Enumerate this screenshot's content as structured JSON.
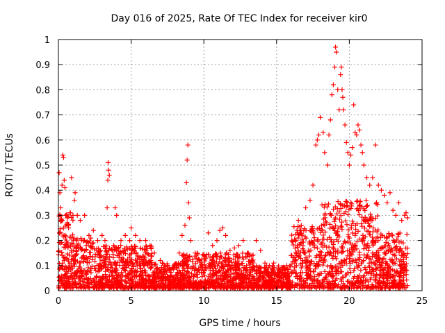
{
  "chart_data": {
    "type": "scatter",
    "title": "Day 016 of 2025, Rate Of TEC Index for receiver kir0",
    "xlabel": "GPS time / hours",
    "ylabel": "ROTI / TECUs",
    "xlim": [
      0,
      25
    ],
    "ylim": [
      0,
      1
    ],
    "xticks": [
      "0",
      "5",
      "10",
      "15",
      "20",
      "25"
    ],
    "yticks": [
      "0",
      "0.1",
      "0.2",
      "0.3",
      "0.4",
      "0.5",
      "0.6",
      "0.7",
      "0.8",
      "0.9",
      "1"
    ],
    "grid": true,
    "marker": "plus",
    "color": "#ff0000",
    "series": [
      {
        "points": [
          [
            0.05,
            0.47
          ],
          [
            0.1,
            0.39
          ],
          [
            0.15,
            0.33
          ],
          [
            0.2,
            0.28
          ],
          [
            0.25,
            0.42
          ],
          [
            0.3,
            0.54
          ],
          [
            0.35,
            0.53
          ],
          [
            0.4,
            0.44
          ],
          [
            0.45,
            0.41
          ],
          [
            0.5,
            0.3
          ],
          [
            0.6,
            0.27
          ],
          [
            0.7,
            0.25
          ],
          [
            0.8,
            0.31
          ],
          [
            0.9,
            0.45
          ],
          [
            1.0,
            0.3
          ],
          [
            1.1,
            0.36
          ],
          [
            1.15,
            0.39
          ],
          [
            1.3,
            0.3
          ],
          [
            1.5,
            0.28
          ],
          [
            1.8,
            0.3
          ],
          [
            2.1,
            0.22
          ],
          [
            2.4,
            0.24
          ],
          [
            2.7,
            0.2
          ],
          [
            3.0,
            0.22
          ],
          [
            3.2,
            0.2
          ],
          [
            3.35,
            0.33
          ],
          [
            3.4,
            0.44
          ],
          [
            3.42,
            0.51
          ],
          [
            3.45,
            0.48
          ],
          [
            3.5,
            0.46
          ],
          [
            3.8,
            0.18
          ],
          [
            3.9,
            0.33
          ],
          [
            4.0,
            0.3
          ],
          [
            4.3,
            0.2
          ],
          [
            4.6,
            0.22
          ],
          [
            4.9,
            0.2
          ],
          [
            5.0,
            0.25
          ],
          [
            5.3,
            0.22
          ],
          [
            5.6,
            0.2
          ],
          [
            6.0,
            0.2
          ],
          [
            6.3,
            0.18
          ],
          [
            6.6,
            0.15
          ],
          [
            7.0,
            0.12
          ],
          [
            7.3,
            0.1
          ],
          [
            7.6,
            0.09
          ],
          [
            8.0,
            0.1
          ],
          [
            8.3,
            0.15
          ],
          [
            8.5,
            0.22
          ],
          [
            8.7,
            0.26
          ],
          [
            8.8,
            0.43
          ],
          [
            8.85,
            0.52
          ],
          [
            8.9,
            0.58
          ],
          [
            8.95,
            0.35
          ],
          [
            9.0,
            0.29
          ],
          [
            9.1,
            0.2
          ],
          [
            9.4,
            0.15
          ],
          [
            9.7,
            0.12
          ],
          [
            10.0,
            0.14
          ],
          [
            10.3,
            0.23
          ],
          [
            10.6,
            0.18
          ],
          [
            10.9,
            0.2
          ],
          [
            11.1,
            0.24
          ],
          [
            11.3,
            0.25
          ],
          [
            11.5,
            0.22
          ],
          [
            11.8,
            0.16
          ],
          [
            12.1,
            0.17
          ],
          [
            12.4,
            0.18
          ],
          [
            12.7,
            0.2
          ],
          [
            13.0,
            0.15
          ],
          [
            13.3,
            0.14
          ],
          [
            13.6,
            0.2
          ],
          [
            13.9,
            0.16
          ],
          [
            14.2,
            0.11
          ],
          [
            14.5,
            0.1
          ],
          [
            14.8,
            0.11
          ],
          [
            15.1,
            0.09
          ],
          [
            15.4,
            0.08
          ],
          [
            15.7,
            0.1
          ],
          [
            16.0,
            0.14
          ],
          [
            16.3,
            0.2
          ],
          [
            16.5,
            0.28
          ],
          [
            16.7,
            0.26
          ],
          [
            17.0,
            0.33
          ],
          [
            17.3,
            0.36
          ],
          [
            17.5,
            0.42
          ],
          [
            17.7,
            0.58
          ],
          [
            17.8,
            0.6
          ],
          [
            17.9,
            0.62
          ],
          [
            18.0,
            0.69
          ],
          [
            18.2,
            0.63
          ],
          [
            18.3,
            0.55
          ],
          [
            18.5,
            0.5
          ],
          [
            18.6,
            0.62
          ],
          [
            18.7,
            0.68
          ],
          [
            18.8,
            0.78
          ],
          [
            18.9,
            0.82
          ],
          [
            19.0,
            0.89
          ],
          [
            19.05,
            0.97
          ],
          [
            19.1,
            0.95
          ],
          [
            19.2,
            0.8
          ],
          [
            19.3,
            0.72
          ],
          [
            19.4,
            0.86
          ],
          [
            19.45,
            0.89
          ],
          [
            19.5,
            0.8
          ],
          [
            19.55,
            0.77
          ],
          [
            19.6,
            0.72
          ],
          [
            19.7,
            0.66
          ],
          [
            19.8,
            0.59
          ],
          [
            19.9,
            0.55
          ],
          [
            20.0,
            0.5
          ],
          [
            20.1,
            0.54
          ],
          [
            20.2,
            0.57
          ],
          [
            20.3,
            0.74
          ],
          [
            20.4,
            0.63
          ],
          [
            20.5,
            0.62
          ],
          [
            20.6,
            0.66
          ],
          [
            20.7,
            0.64
          ],
          [
            20.8,
            0.58
          ],
          [
            20.9,
            0.55
          ],
          [
            21.0,
            0.5
          ],
          [
            21.2,
            0.45
          ],
          [
            21.4,
            0.42
          ],
          [
            21.6,
            0.45
          ],
          [
            21.8,
            0.58
          ],
          [
            22.0,
            0.42
          ],
          [
            22.2,
            0.4
          ],
          [
            22.4,
            0.38
          ],
          [
            22.6,
            0.35
          ],
          [
            22.8,
            0.39
          ],
          [
            23.0,
            0.32
          ],
          [
            23.2,
            0.3
          ],
          [
            23.4,
            0.35
          ],
          [
            23.6,
            0.28
          ],
          [
            23.8,
            0.3
          ],
          [
            23.9,
            0.31
          ],
          [
            24.0,
            0.29
          ],
          [
            0.3,
            0.02
          ],
          [
            1.0,
            0.03
          ],
          [
            2.0,
            0.03
          ],
          [
            3.0,
            0.02
          ],
          [
            4.0,
            0.03
          ],
          [
            5.0,
            0.02
          ],
          [
            6.0,
            0.03
          ],
          [
            7.0,
            0.02
          ],
          [
            8.0,
            0.02
          ],
          [
            9.0,
            0.03
          ],
          [
            10.0,
            0.02
          ],
          [
            11.0,
            0.02
          ],
          [
            12.0,
            0.03
          ],
          [
            13.0,
            0.02
          ],
          [
            14.0,
            0.02
          ],
          [
            15.0,
            0.02
          ],
          [
            16.0,
            0.02
          ],
          [
            17.0,
            0.03
          ],
          [
            18.0,
            0.03
          ],
          [
            19.0,
            0.02
          ],
          [
            20.0,
            0.03
          ],
          [
            21.0,
            0.02
          ],
          [
            22.0,
            0.03
          ],
          [
            23.0,
            0.02
          ],
          [
            24.0,
            0.02
          ]
        ]
      }
    ]
  }
}
